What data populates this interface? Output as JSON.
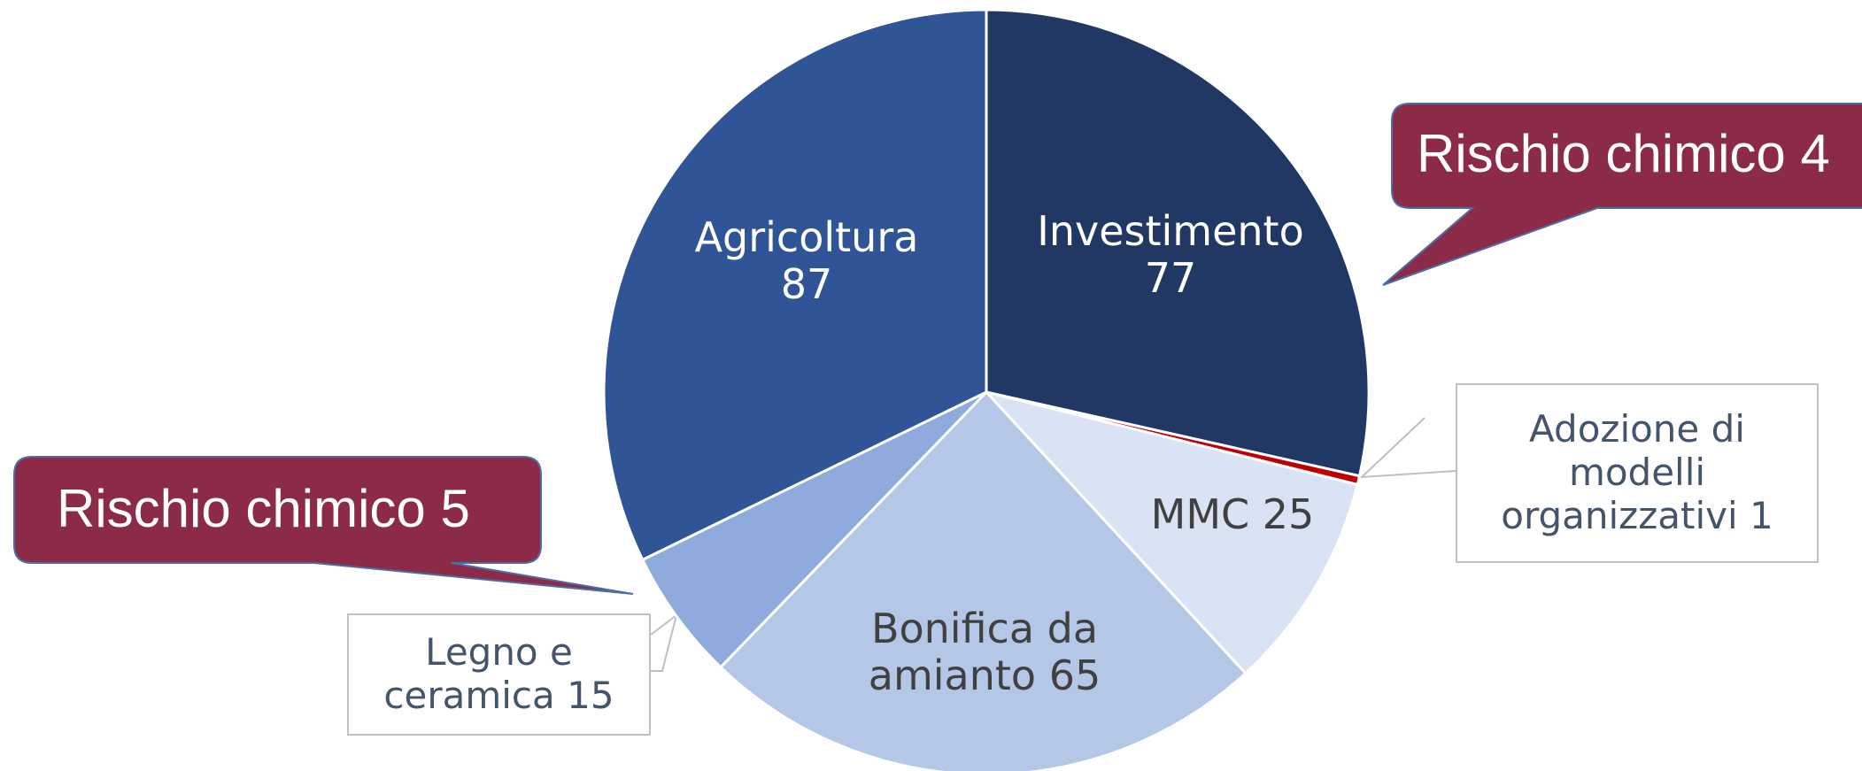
{
  "chart_data": {
    "type": "pie",
    "categories": [
      "Investimento",
      "Adozione di modelli organizzativi",
      "MMC",
      "Bonifica da amianto",
      "Legno e ceramica",
      "Agricoltura"
    ],
    "values": [
      77,
      1,
      25,
      65,
      15,
      87
    ],
    "colors": [
      "#213864",
      "#c00000",
      "#dae3f3",
      "#b4c7e7",
      "#8faadc",
      "#2f5597"
    ],
    "annotations": [
      "Rischio chimico 4",
      "Rischio chimico 5"
    ]
  }
}
